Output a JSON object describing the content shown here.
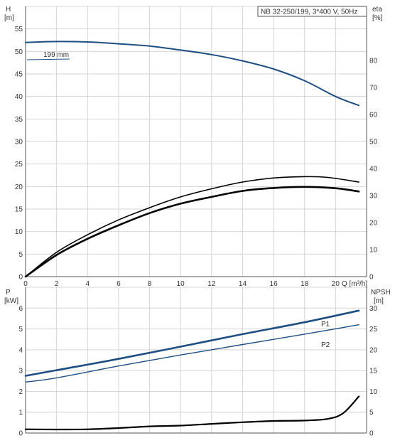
{
  "chart_data": [
    {
      "type": "line",
      "title": "NB 32-250/199, 3*400 V, 50Hz",
      "ylabel_left": "H",
      "ylabel_left_unit": "[m]",
      "ylabel_right": "eta",
      "ylabel_right_unit": "[%]",
      "xlabel": "Q [m³/h]",
      "xlim": [
        0,
        22
      ],
      "x_ticks": [
        0,
        2,
        4,
        6,
        8,
        10,
        12,
        14,
        16,
        18,
        20
      ],
      "ylim_left": [
        0,
        60
      ],
      "y_left_ticks": [
        0,
        5,
        10,
        15,
        20,
        25,
        30,
        35,
        40,
        45,
        50,
        55
      ],
      "ylim_right": [
        0,
        100
      ],
      "y_right_ticks": [
        0,
        10,
        20,
        30,
        40,
        50,
        60,
        70,
        80
      ],
      "grid": true,
      "annotations": [
        "199 mm"
      ],
      "series": [
        {
          "name": "199 mm",
          "axis": "left",
          "color": "#1f4e82",
          "points": [
            [
              0,
              52.0
            ],
            [
              2,
              52.2
            ],
            [
              4,
              52.1
            ],
            [
              6,
              51.7
            ],
            [
              8,
              51.2
            ],
            [
              10,
              50.3
            ],
            [
              12,
              49.3
            ],
            [
              14,
              47.9
            ],
            [
              16,
              46.1
            ],
            [
              18,
              43.5
            ],
            [
              20,
              40.0
            ],
            [
              21.5,
              38.0
            ]
          ]
        },
        {
          "axis": "right",
          "color": "#000000",
          "points": [
            [
              0,
              0
            ],
            [
              2,
              9
            ],
            [
              4,
              15.5
            ],
            [
              6,
              21
            ],
            [
              8,
              25.5
            ],
            [
              10,
              29.5
            ],
            [
              12,
              32.5
            ],
            [
              14,
              35
            ],
            [
              16,
              36.5
            ],
            [
              18,
              37
            ],
            [
              19.5,
              36.7
            ],
            [
              21.5,
              35
            ]
          ]
        },
        {
          "axis": "right",
          "color": "#000000",
          "points": [
            [
              0,
              0
            ],
            [
              2,
              8
            ],
            [
              4,
              14
            ],
            [
              6,
              19
            ],
            [
              8,
              23.5
            ],
            [
              10,
              27
            ],
            [
              12,
              29.5
            ],
            [
              14,
              31.7
            ],
            [
              16,
              32.8
            ],
            [
              18,
              33.2
            ],
            [
              20,
              32.7
            ],
            [
              21.5,
              31.5
            ]
          ]
        }
      ]
    },
    {
      "type": "line",
      "ylabel_left": "P",
      "ylabel_left_unit": "[kW]",
      "ylabel_right": "NPSH",
      "ylabel_right_unit": "[m]",
      "xlim": [
        0,
        22
      ],
      "ylim_left": [
        0,
        7
      ],
      "y_left_ticks": [
        0,
        1,
        2,
        3,
        4,
        5,
        6
      ],
      "ylim_right": [
        0,
        35
      ],
      "y_right_ticks": [
        0,
        5,
        10,
        15,
        20,
        25,
        30
      ],
      "grid": true,
      "series": [
        {
          "name": "P1",
          "axis": "left",
          "color": "#1f4e82",
          "points": [
            [
              0,
              2.75
            ],
            [
              2,
              3.02
            ],
            [
              6,
              3.56
            ],
            [
              10,
              4.15
            ],
            [
              14,
              4.75
            ],
            [
              18,
              5.32
            ],
            [
              21.5,
              5.88
            ]
          ]
        },
        {
          "name": "P2",
          "axis": "left",
          "color": "#1f4e82",
          "points": [
            [
              0,
              2.45
            ],
            [
              2,
              2.65
            ],
            [
              6,
              3.22
            ],
            [
              10,
              3.75
            ],
            [
              14,
              4.25
            ],
            [
              18,
              4.75
            ],
            [
              21.5,
              5.2
            ]
          ]
        },
        {
          "axis": "right",
          "color": "#000000",
          "points": [
            [
              0,
              0.9
            ],
            [
              2,
              0.85
            ],
            [
              4,
              0.9
            ],
            [
              6,
              1.2
            ],
            [
              8,
              1.6
            ],
            [
              10,
              1.8
            ],
            [
              12,
              2.2
            ],
            [
              14,
              2.6
            ],
            [
              16,
              2.9
            ],
            [
              18,
              3.0
            ],
            [
              19.5,
              3.4
            ],
            [
              20.5,
              4.8
            ],
            [
              21.5,
              8.8
            ]
          ]
        }
      ]
    }
  ]
}
